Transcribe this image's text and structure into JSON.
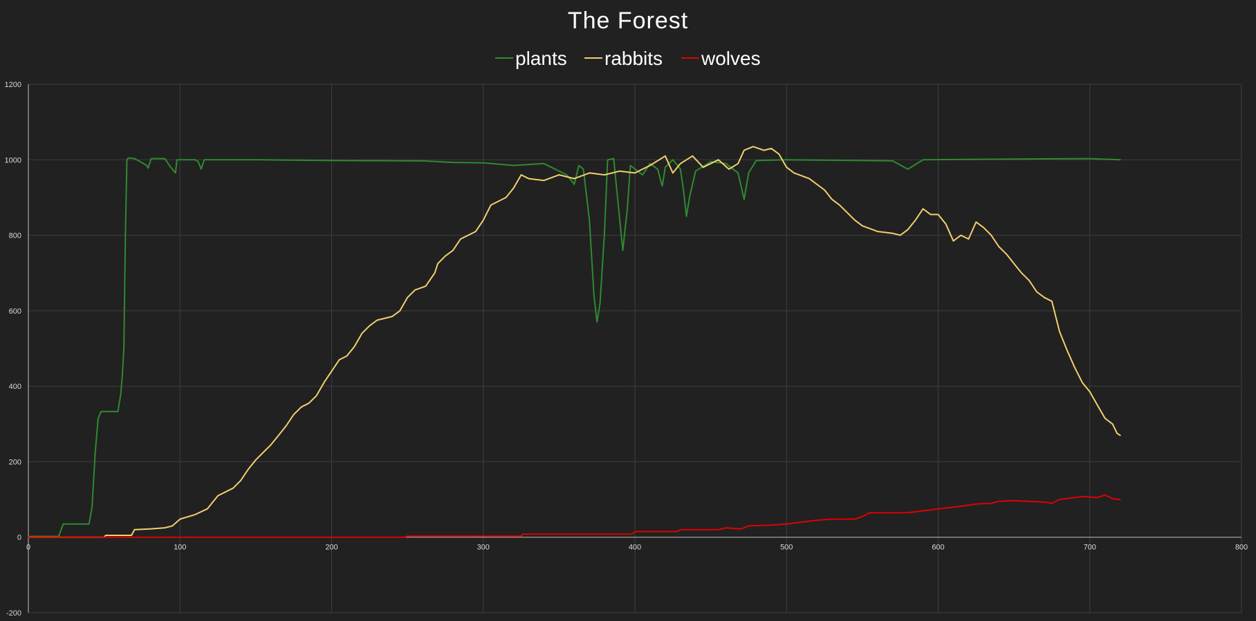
{
  "chart_data": {
    "type": "line",
    "title": "The Forest",
    "xlabel": "",
    "ylabel": "",
    "xlim": [
      0,
      800
    ],
    "ylim": [
      -200,
      1200
    ],
    "x_ticks": [
      0,
      100,
      200,
      300,
      400,
      500,
      600,
      700,
      800
    ],
    "y_ticks": [
      -200,
      0,
      200,
      400,
      600,
      800,
      1000,
      1200
    ],
    "grid": true,
    "legend_position": "top",
    "series": [
      {
        "name": "plants",
        "color": "#2e8b2e",
        "points": [
          [
            0,
            2
          ],
          [
            20,
            2
          ],
          [
            23,
            35
          ],
          [
            40,
            35
          ],
          [
            42,
            80
          ],
          [
            44,
            220
          ],
          [
            46,
            315
          ],
          [
            48,
            333
          ],
          [
            59,
            333
          ],
          [
            61,
            380
          ],
          [
            62,
            430
          ],
          [
            63,
            500
          ],
          [
            64,
            800
          ],
          [
            65,
            1000
          ],
          [
            66,
            1005
          ],
          [
            70,
            1003
          ],
          [
            76,
            990
          ],
          [
            78,
            985
          ],
          [
            79,
            978
          ],
          [
            81,
            1003
          ],
          [
            90,
            1003
          ],
          [
            93,
            985
          ],
          [
            97,
            965
          ],
          [
            98,
            1000
          ],
          [
            110,
            1000
          ],
          [
            112,
            995
          ],
          [
            114,
            975
          ],
          [
            116,
            1000
          ],
          [
            150,
            1000
          ],
          [
            200,
            998
          ],
          [
            260,
            997
          ],
          [
            280,
            993
          ],
          [
            300,
            992
          ],
          [
            320,
            985
          ],
          [
            340,
            990
          ],
          [
            355,
            960
          ],
          [
            360,
            935
          ],
          [
            363,
            985
          ],
          [
            366,
            975
          ],
          [
            370,
            840
          ],
          [
            373,
            640
          ],
          [
            375,
            570
          ],
          [
            377,
            620
          ],
          [
            380,
            810
          ],
          [
            382,
            1000
          ],
          [
            386,
            1003
          ],
          [
            390,
            840
          ],
          [
            392,
            760
          ],
          [
            395,
            870
          ],
          [
            397,
            985
          ],
          [
            405,
            960
          ],
          [
            410,
            990
          ],
          [
            415,
            975
          ],
          [
            418,
            930
          ],
          [
            420,
            980
          ],
          [
            425,
            1000
          ],
          [
            430,
            975
          ],
          [
            432,
            920
          ],
          [
            434,
            850
          ],
          [
            436,
            900
          ],
          [
            440,
            970
          ],
          [
            450,
            995
          ],
          [
            460,
            990
          ],
          [
            468,
            965
          ],
          [
            470,
            930
          ],
          [
            472,
            895
          ],
          [
            475,
            965
          ],
          [
            480,
            998
          ],
          [
            500,
            1000
          ],
          [
            550,
            998
          ],
          [
            570,
            997
          ],
          [
            580,
            975
          ],
          [
            590,
            1000
          ],
          [
            650,
            1002
          ],
          [
            700,
            1003
          ],
          [
            720,
            1000
          ]
        ]
      },
      {
        "name": "rabbits",
        "color": "#f4d06f",
        "points": [
          [
            0,
            0
          ],
          [
            50,
            0
          ],
          [
            51,
            5
          ],
          [
            68,
            5
          ],
          [
            70,
            20
          ],
          [
            80,
            22
          ],
          [
            90,
            25
          ],
          [
            95,
            30
          ],
          [
            100,
            48
          ],
          [
            110,
            60
          ],
          [
            118,
            75
          ],
          [
            125,
            110
          ],
          [
            135,
            130
          ],
          [
            140,
            150
          ],
          [
            145,
            180
          ],
          [
            150,
            205
          ],
          [
            160,
            245
          ],
          [
            165,
            270
          ],
          [
            170,
            295
          ],
          [
            175,
            325
          ],
          [
            180,
            345
          ],
          [
            185,
            355
          ],
          [
            190,
            375
          ],
          [
            195,
            410
          ],
          [
            200,
            440
          ],
          [
            205,
            470
          ],
          [
            210,
            480
          ],
          [
            215,
            505
          ],
          [
            220,
            540
          ],
          [
            225,
            560
          ],
          [
            230,
            575
          ],
          [
            240,
            585
          ],
          [
            245,
            600
          ],
          [
            250,
            635
          ],
          [
            255,
            655
          ],
          [
            262,
            665
          ],
          [
            268,
            700
          ],
          [
            270,
            725
          ],
          [
            275,
            745
          ],
          [
            280,
            760
          ],
          [
            285,
            790
          ],
          [
            290,
            800
          ],
          [
            295,
            810
          ],
          [
            300,
            840
          ],
          [
            305,
            880
          ],
          [
            310,
            890
          ],
          [
            315,
            900
          ],
          [
            320,
            925
          ],
          [
            325,
            960
          ],
          [
            330,
            950
          ],
          [
            340,
            945
          ],
          [
            350,
            960
          ],
          [
            360,
            950
          ],
          [
            370,
            965
          ],
          [
            380,
            960
          ],
          [
            390,
            970
          ],
          [
            400,
            965
          ],
          [
            410,
            985
          ],
          [
            420,
            1010
          ],
          [
            425,
            965
          ],
          [
            430,
            990
          ],
          [
            438,
            1010
          ],
          [
            445,
            980
          ],
          [
            450,
            990
          ],
          [
            455,
            1000
          ],
          [
            462,
            975
          ],
          [
            468,
            990
          ],
          [
            472,
            1025
          ],
          [
            478,
            1035
          ],
          [
            485,
            1025
          ],
          [
            490,
            1030
          ],
          [
            495,
            1015
          ],
          [
            500,
            980
          ],
          [
            505,
            965
          ],
          [
            515,
            950
          ],
          [
            525,
            920
          ],
          [
            530,
            895
          ],
          [
            535,
            880
          ],
          [
            540,
            860
          ],
          [
            545,
            840
          ],
          [
            550,
            825
          ],
          [
            560,
            810
          ],
          [
            570,
            805
          ],
          [
            575,
            800
          ],
          [
            580,
            815
          ],
          [
            585,
            840
          ],
          [
            590,
            870
          ],
          [
            595,
            855
          ],
          [
            600,
            855
          ],
          [
            605,
            830
          ],
          [
            610,
            785
          ],
          [
            615,
            800
          ],
          [
            620,
            790
          ],
          [
            625,
            835
          ],
          [
            630,
            820
          ],
          [
            635,
            800
          ],
          [
            640,
            770
          ],
          [
            645,
            750
          ],
          [
            650,
            725
          ],
          [
            655,
            700
          ],
          [
            660,
            680
          ],
          [
            665,
            650
          ],
          [
            670,
            635
          ],
          [
            675,
            625
          ],
          [
            680,
            545
          ],
          [
            685,
            495
          ],
          [
            690,
            450
          ],
          [
            695,
            410
          ],
          [
            700,
            385
          ],
          [
            705,
            350
          ],
          [
            710,
            315
          ],
          [
            715,
            300
          ],
          [
            718,
            275
          ],
          [
            720,
            270
          ]
        ]
      },
      {
        "name": "wolves",
        "color": "#e00000",
        "points": [
          [
            0,
            0
          ],
          [
            248,
            0
          ],
          [
            250,
            3
          ],
          [
            325,
            3
          ],
          [
            326,
            8
          ],
          [
            398,
            8
          ],
          [
            400,
            15
          ],
          [
            428,
            15
          ],
          [
            430,
            20
          ],
          [
            455,
            20
          ],
          [
            460,
            25
          ],
          [
            470,
            22
          ],
          [
            475,
            30
          ],
          [
            490,
            32
          ],
          [
            500,
            35
          ],
          [
            510,
            40
          ],
          [
            520,
            45
          ],
          [
            530,
            48
          ],
          [
            545,
            48
          ],
          [
            550,
            55
          ],
          [
            555,
            65
          ],
          [
            580,
            65
          ],
          [
            590,
            70
          ],
          [
            600,
            75
          ],
          [
            615,
            82
          ],
          [
            625,
            88
          ],
          [
            635,
            90
          ],
          [
            640,
            95
          ],
          [
            650,
            97
          ],
          [
            670,
            93
          ],
          [
            675,
            90
          ],
          [
            680,
            100
          ],
          [
            690,
            105
          ],
          [
            695,
            108
          ],
          [
            705,
            105
          ],
          [
            710,
            112
          ],
          [
            715,
            102
          ],
          [
            720,
            100
          ]
        ]
      }
    ]
  }
}
